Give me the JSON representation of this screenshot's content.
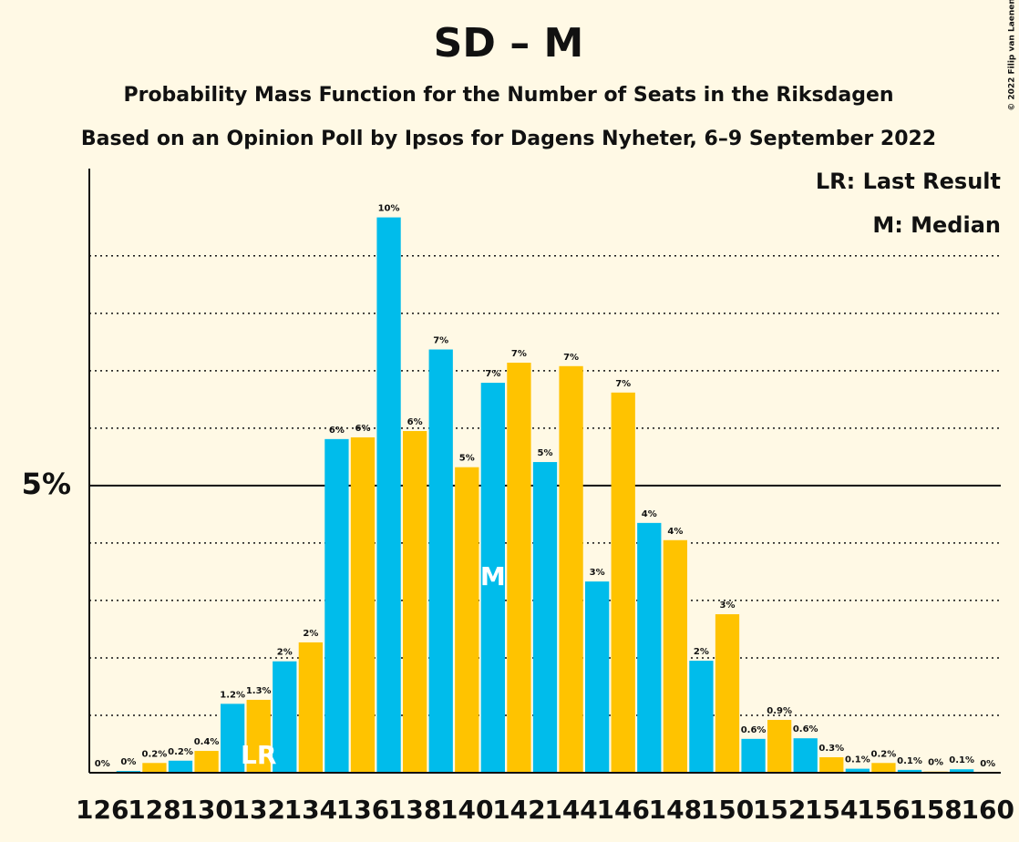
{
  "chart_data": {
    "type": "bar",
    "title": "SD – M",
    "subtitle": "Probability Mass Function for the Number of Seats in the Riksdagen",
    "subtitle2": "Based on an Opinion Poll by Ipsos for Dagens Nyheter, 6–9 September 2022",
    "copyright": "© 2022 Filip van Laenen",
    "legend": [
      "LR: Last Result",
      "M: Median"
    ],
    "categories": [
      126,
      null,
      128,
      null,
      130,
      null,
      132,
      null,
      134,
      null,
      136,
      null,
      138,
      null,
      140,
      null,
      142,
      null,
      144,
      null,
      146,
      null,
      148,
      null,
      150,
      null,
      152,
      null,
      154,
      null,
      156,
      null,
      158,
      null,
      160
    ],
    "values": [
      0,
      0.03,
      0.17,
      0.21,
      0.38,
      1.2,
      1.27,
      1.94,
      2.27,
      5.81,
      5.84,
      9.67,
      5.95,
      7.37,
      5.32,
      6.79,
      7.14,
      5.41,
      7.08,
      3.33,
      6.62,
      4.35,
      4.05,
      1.95,
      2.76,
      0.59,
      0.92,
      0.6,
      0.27,
      0.07,
      0.17,
      0.05,
      0.02,
      0.06,
      0
    ],
    "value_labels": [
      "0%",
      "0%",
      "0.2%",
      "0.2%",
      "0.4%",
      "1.2%",
      "1.3%",
      "2%",
      "2%",
      "6%",
      "6%",
      "10%",
      "6%",
      "7%",
      "5%",
      "7%",
      "7%",
      "5%",
      "7%",
      "3%",
      "7%",
      "4%",
      "4%",
      "2%",
      "3%",
      "0.6%",
      "0.9%",
      "0.6%",
      "0.3%",
      "0.1%",
      "0.2%",
      "0.1%",
      "0%",
      "0.1%",
      "0%"
    ],
    "colors": [
      "#FFC300",
      "#00BCEB"
    ],
    "markers": [
      {
        "index": 6,
        "label": "LR"
      },
      {
        "index": 15,
        "label": "M"
      }
    ],
    "ylim": [
      0,
      10.52
    ],
    "yticks": [
      {
        "value": 5,
        "label": "5%"
      }
    ],
    "minor_gridlines": [
      1,
      2,
      3,
      4,
      6,
      7,
      8,
      9
    ]
  }
}
